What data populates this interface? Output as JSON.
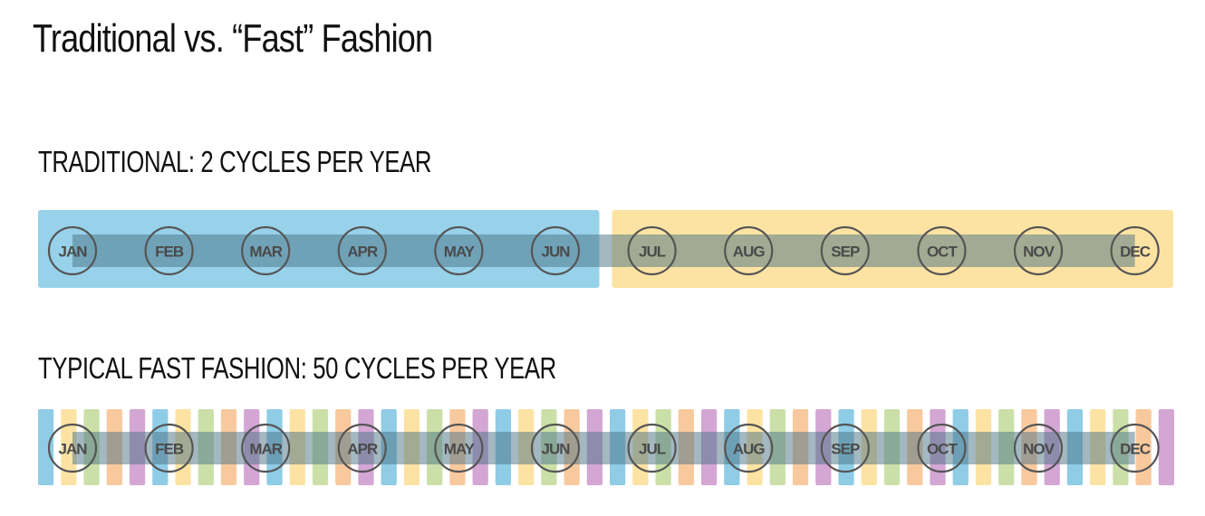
{
  "title": "Traditional vs. “Fast” Fashion",
  "sections": {
    "traditional": {
      "label": "TRADITIONAL: 2 CYCLES PER YEAR",
      "cycles": 2,
      "cycle_colors": [
        "#97d2ea",
        "#fde3a3"
      ]
    },
    "fast": {
      "label": "TYPICAL FAST FASHION: 50 CYCLES PER YEAR",
      "cycles": 50,
      "cycle_colors": [
        "#8fcce6",
        "#fde3a3",
        "#cbe0a8",
        "#f9c99e",
        "#d3a6d4"
      ]
    }
  },
  "months": [
    "JAN",
    "FEB",
    "MAR",
    "APR",
    "MAY",
    "JUN",
    "JUL",
    "AUG",
    "SEP",
    "OCT",
    "NOV",
    "DEC"
  ],
  "colors": {
    "timeline_band": "#4a7283",
    "marker_stroke": "#555555"
  }
}
